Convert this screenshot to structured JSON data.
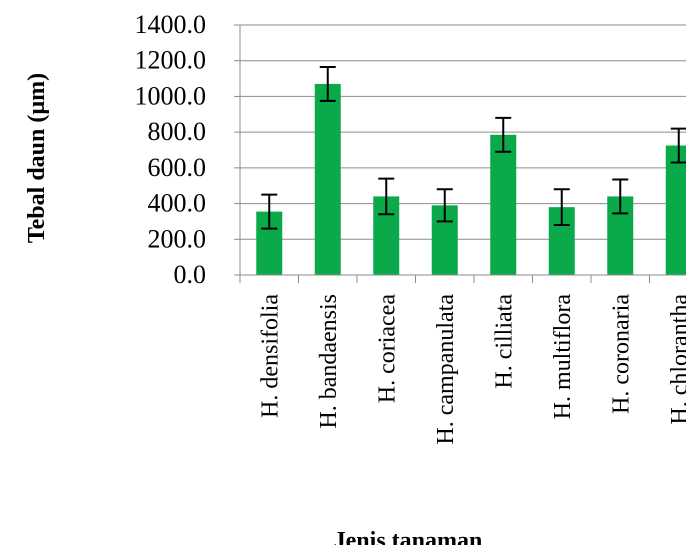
{
  "chart_data": {
    "type": "bar",
    "categories": [
      "H. densifolia",
      "H. bandaensis",
      "H. coriacea",
      "H. campanulata",
      "H. cilliata",
      "H. multiflora",
      "H. coronaria",
      "H. chlorantha"
    ],
    "values": [
      355,
      1070,
      440,
      390,
      785,
      380,
      440,
      725
    ],
    "errors": [
      95,
      95,
      100,
      90,
      95,
      100,
      95,
      95
    ],
    "ylabel": "Tebal daun (µm)",
    "xlabel": "Jenis tanaman",
    "ylim": [
      0,
      1400
    ],
    "yticks": [
      "0.0",
      "200.0",
      "400.0",
      "600.0",
      "800.0",
      "1000.0",
      "1200.0",
      "1400.0"
    ],
    "bar_color": "#0aaa4a",
    "grid": true,
    "error_bars": true
  }
}
